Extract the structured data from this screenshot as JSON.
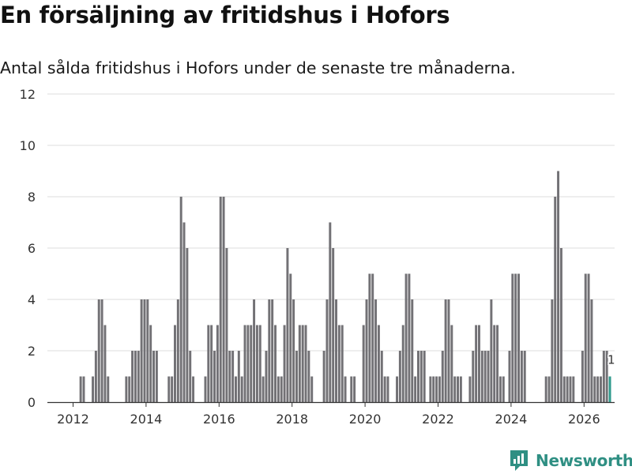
{
  "title": "En försäljning av fritidshus i Hofors",
  "subtitle": "Antal sålda fritidshus i Hofors under de senaste tre månaderna.",
  "brand": "Newsworthy",
  "colors": {
    "bar": "#727175",
    "highlight": "#2f9a8c",
    "grid": "#dddddd",
    "axis": "#333333",
    "text": "#333333",
    "brand": "#2f8f83"
  },
  "chart_data": {
    "type": "bar",
    "title": "En försäljning av fritidshus i Hofors",
    "subtitle": "Antal sålda fritidshus i Hofors under de senaste tre månaderna.",
    "xlabel": "",
    "ylabel": "",
    "ylim": [
      0,
      12
    ],
    "yticks": [
      0,
      2,
      4,
      6,
      8,
      10,
      12
    ],
    "xticks": [
      2012,
      2014,
      2016,
      2018,
      2020,
      2022,
      2024,
      2026
    ],
    "start": "2011-07",
    "grid": true,
    "highlight_last": true,
    "last_label": "1",
    "values": [
      0,
      0,
      0,
      0,
      0,
      0,
      0,
      0,
      1,
      1,
      0,
      0,
      1,
      2,
      4,
      4,
      3,
      1,
      0,
      0,
      0,
      0,
      0,
      1,
      1,
      2,
      2,
      2,
      4,
      4,
      4,
      3,
      2,
      2,
      0,
      0,
      0,
      1,
      1,
      3,
      4,
      8,
      7,
      6,
      2,
      1,
      0,
      0,
      0,
      1,
      3,
      3,
      2,
      3,
      8,
      8,
      6,
      2,
      2,
      1,
      2,
      1,
      3,
      3,
      3,
      4,
      3,
      3,
      1,
      2,
      4,
      4,
      3,
      1,
      1,
      3,
      6,
      5,
      4,
      2,
      3,
      3,
      3,
      2,
      1,
      0,
      0,
      0,
      2,
      4,
      7,
      6,
      4,
      3,
      3,
      1,
      0,
      1,
      1,
      0,
      0,
      3,
      4,
      5,
      5,
      4,
      3,
      2,
      1,
      1,
      0,
      0,
      1,
      2,
      3,
      5,
      5,
      4,
      1,
      2,
      2,
      2,
      0,
      1,
      1,
      1,
      1,
      2,
      4,
      4,
      3,
      1,
      1,
      1,
      0,
      0,
      1,
      2,
      3,
      3,
      2,
      2,
      2,
      4,
      3,
      3,
      1,
      1,
      0,
      2,
      5,
      5,
      5,
      2,
      2,
      0,
      0,
      0,
      0,
      0,
      0,
      1,
      1,
      4,
      8,
      9,
      6,
      1,
      1,
      1,
      1,
      0,
      0,
      2,
      5,
      5,
      4,
      1,
      1,
      1,
      2,
      2,
      1
    ]
  }
}
